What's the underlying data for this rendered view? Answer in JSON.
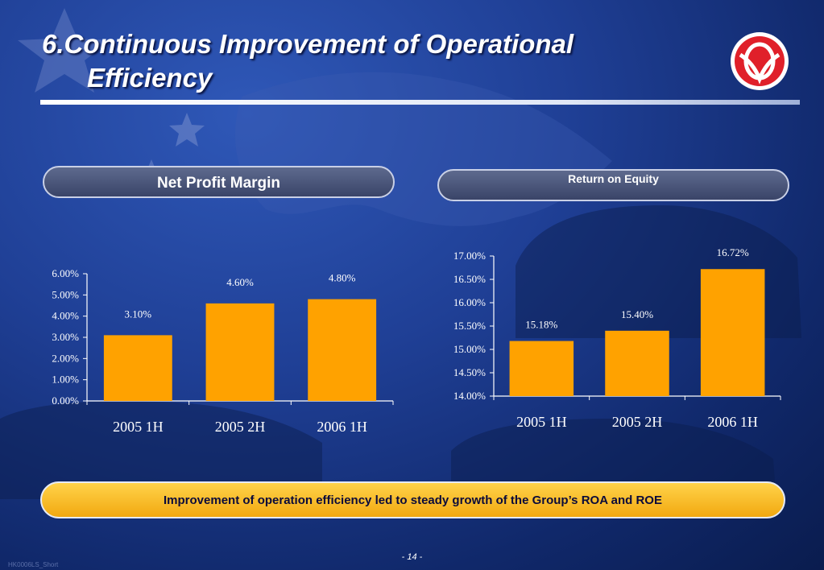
{
  "title": {
    "line1": "6.Continuous Improvement of Operational",
    "line2": "Efficiency"
  },
  "logo": {
    "icon": "dongfeng-logo-icon",
    "color": "#e0202a"
  },
  "panels": {
    "npm_label": "Net Profit Margin",
    "roe_label": "Return on Equity"
  },
  "banner_text": "Improvement of operation efficiency led to steady growth of the Group’s ROA and  ROE",
  "page_number": "- 14 -",
  "doc_code": "HK0006LS_Short",
  "colors": {
    "bar": "#ffa200",
    "banner": "#f7b91d",
    "background": "#1f3f95"
  },
  "chart_data": [
    {
      "type": "bar",
      "title": "Net Profit Margin",
      "categories": [
        "2005 1H",
        "2005 2H",
        "2006 1H"
      ],
      "values": [
        3.1,
        4.6,
        4.8
      ],
      "value_labels": [
        "3.10%",
        "4.60%",
        "4.80%"
      ],
      "ylim": [
        0,
        6
      ],
      "yticks": [
        "0.00%",
        "1.00%",
        "2.00%",
        "3.00%",
        "4.00%",
        "5.00%",
        "6.00%"
      ],
      "ytick_values": [
        0,
        1,
        2,
        3,
        4,
        5,
        6
      ],
      "grid": false,
      "legend": "none"
    },
    {
      "type": "bar",
      "title": "Return on Equity",
      "categories": [
        "2005 1H",
        "2005 2H",
        "2006 1H"
      ],
      "values": [
        15.18,
        15.4,
        16.72
      ],
      "value_labels": [
        "15.18%",
        "15.40%",
        "16.72%"
      ],
      "ylim": [
        14,
        17
      ],
      "yticks": [
        "14.00%",
        "14.50%",
        "15.00%",
        "15.50%",
        "16.00%",
        "16.50%",
        "17.00%"
      ],
      "ytick_values": [
        14,
        14.5,
        15,
        15.5,
        16,
        16.5,
        17
      ],
      "grid": false,
      "legend": "none"
    }
  ]
}
